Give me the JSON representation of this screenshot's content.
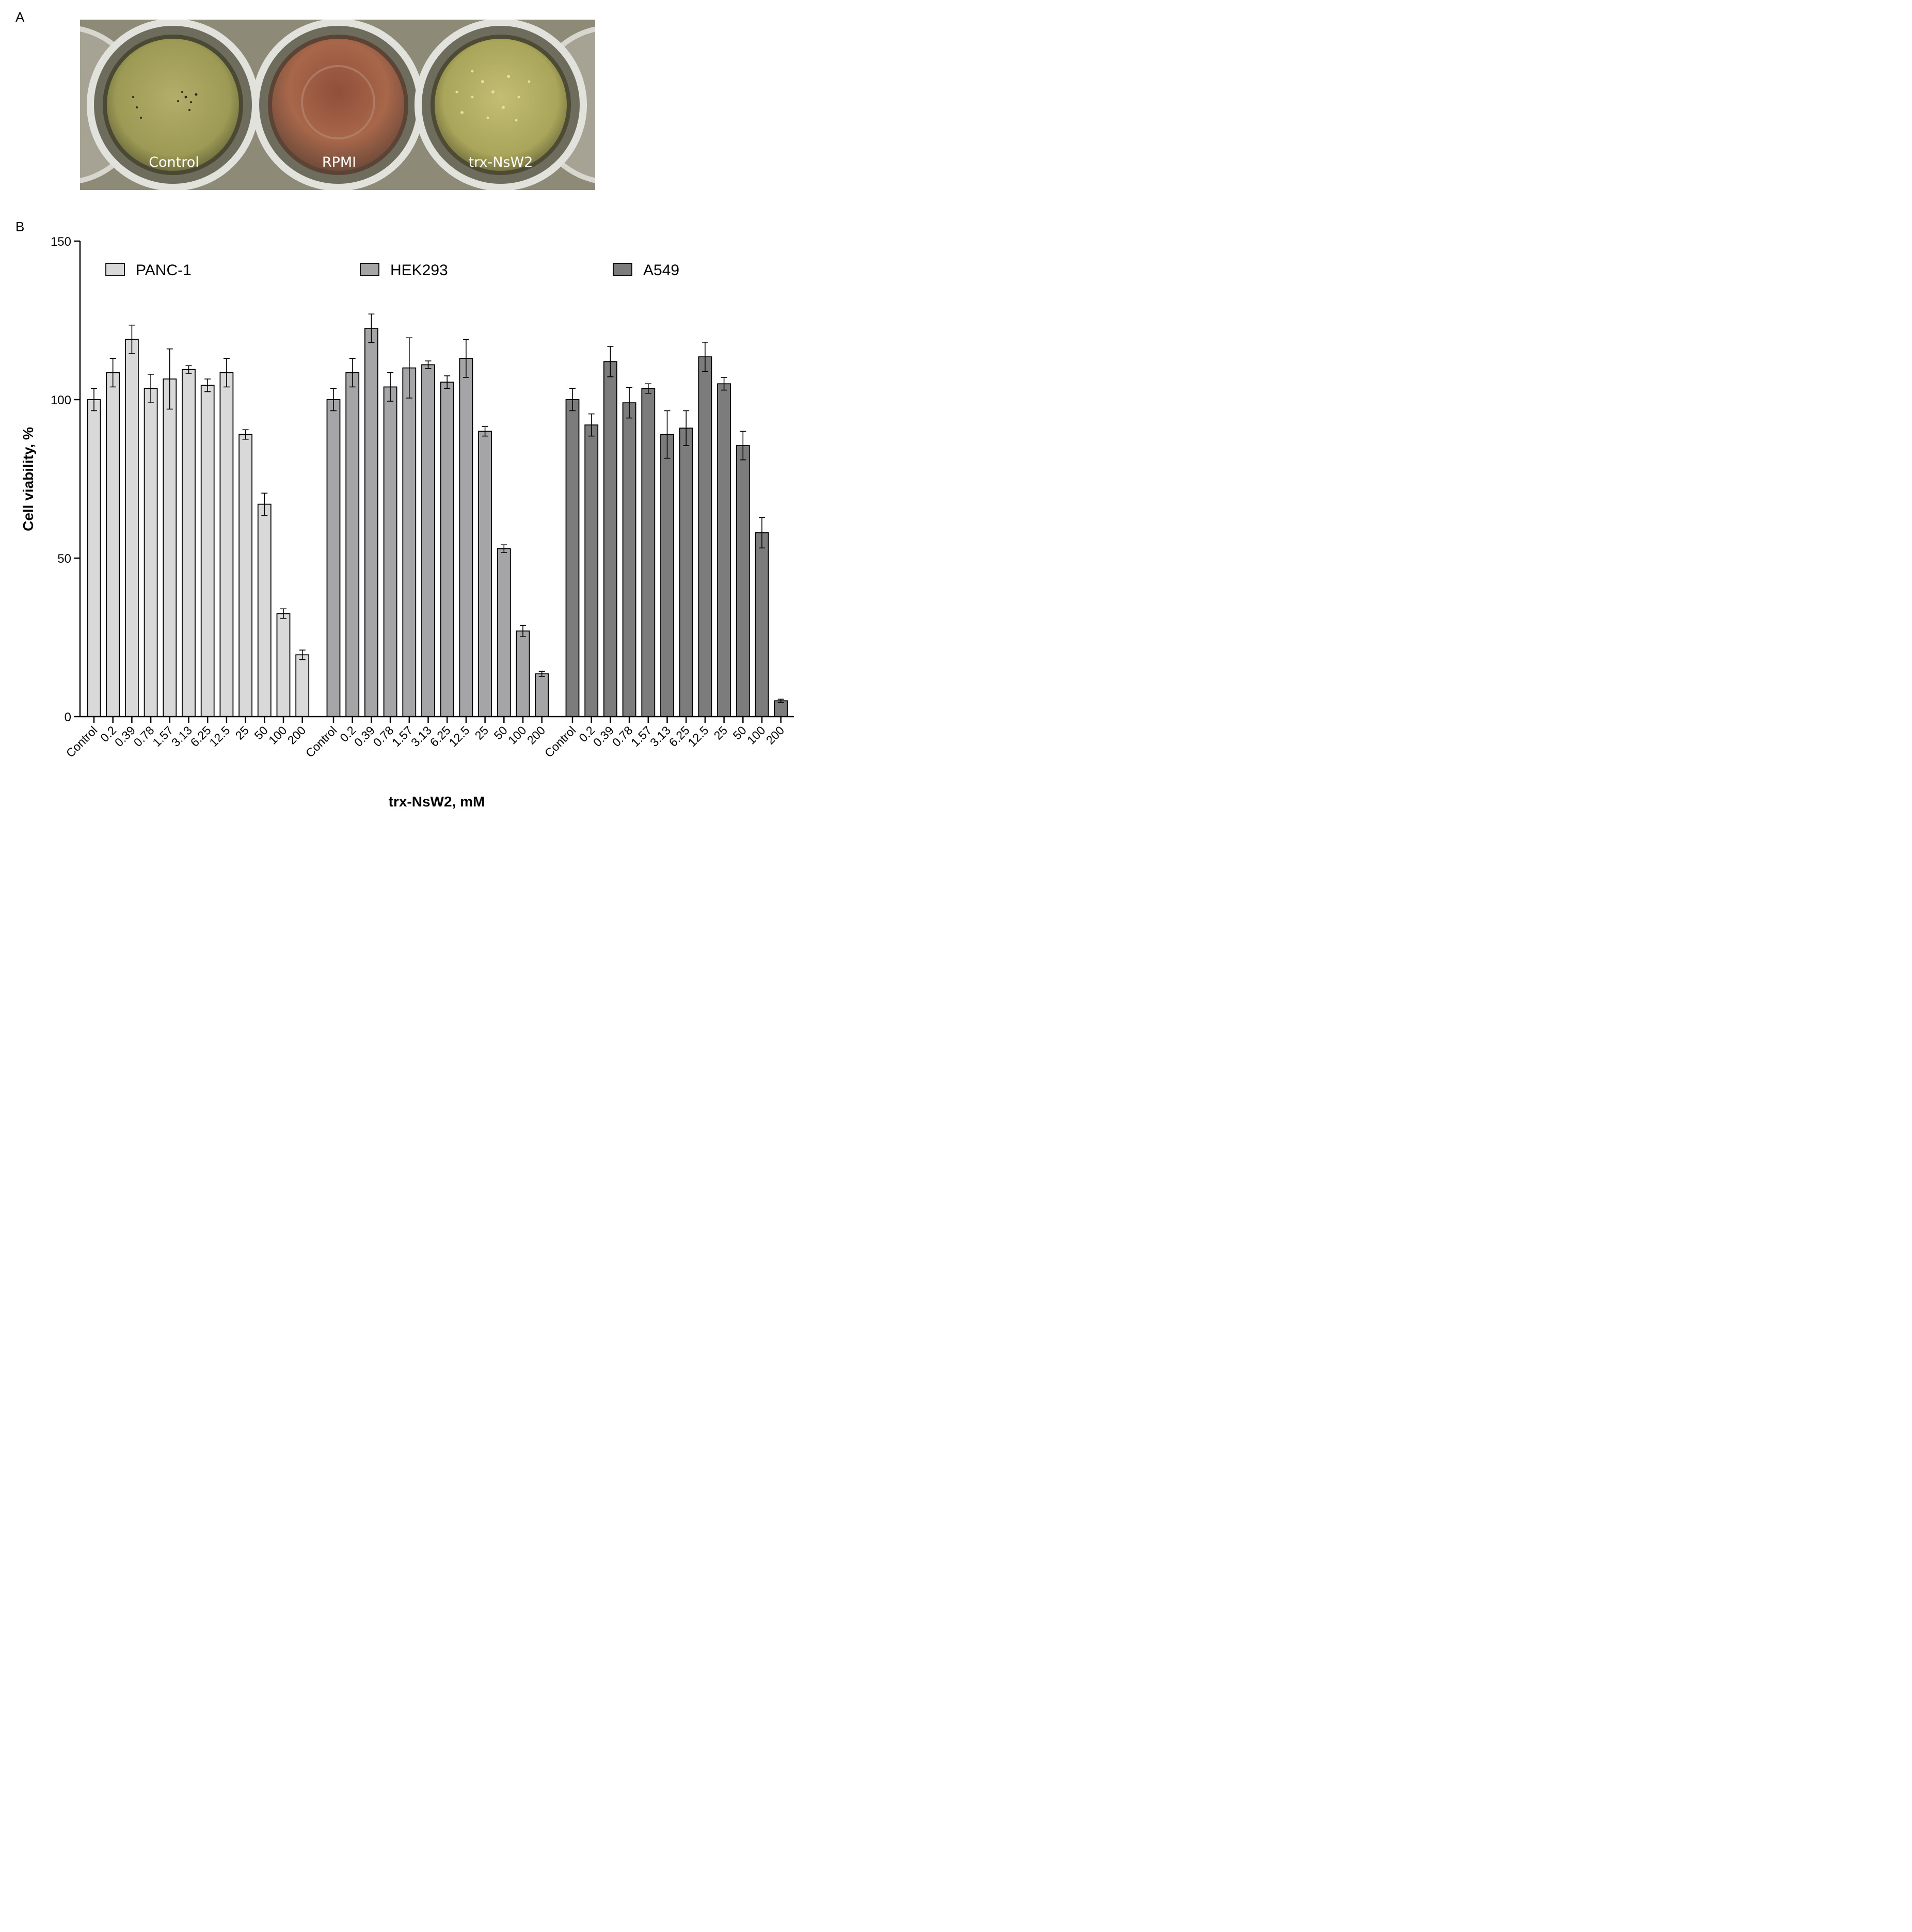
{
  "panels": {
    "a": "A",
    "b": "B"
  },
  "photo": {
    "wells": [
      {
        "label": "Control",
        "color": "#9c9a55"
      },
      {
        "label": "RPMI",
        "color": "#a8674a"
      },
      {
        "label": "trx-NsW2",
        "color": "#a9a55a"
      }
    ]
  },
  "chart_data": {
    "type": "bar",
    "xlabel": "trx-NsW2, mM",
    "ylabel": "Cell viability, %",
    "ylim": [
      0,
      150
    ],
    "yticks": [
      0,
      50,
      100,
      150
    ],
    "legend_position": "top",
    "categories": [
      "Control",
      "0.2",
      "0.39",
      "0.78",
      "1.57",
      "3.13",
      "6.25",
      "12.5",
      "25",
      "50",
      "100",
      "200"
    ],
    "series": [
      {
        "name": "PANC-1",
        "color": "#d9d9d9",
        "values": [
          100,
          108.5,
          119,
          103.5,
          106.5,
          109.5,
          104.5,
          108.5,
          89,
          67,
          32.5,
          19.5
        ],
        "errors": [
          3.5,
          4.5,
          4.5,
          4.5,
          9.5,
          1.2,
          2.0,
          4.5,
          1.5,
          3.5,
          1.5,
          1.5
        ]
      },
      {
        "name": "HEK293",
        "color": "#a5a5a8",
        "values": [
          100,
          108.5,
          122.5,
          104,
          110,
          111,
          105.5,
          113,
          90,
          53,
          27,
          13.5
        ],
        "errors": [
          3.5,
          4.5,
          4.5,
          4.5,
          9.5,
          1.2,
          2.0,
          6.0,
          1.5,
          1.2,
          1.8,
          0.8
        ]
      },
      {
        "name": "A549",
        "color": "#7c7c7c",
        "values": [
          100,
          92,
          112,
          99,
          103.5,
          89,
          91,
          113.5,
          105,
          85.5,
          58,
          5
        ],
        "errors": [
          3.5,
          3.5,
          4.8,
          4.8,
          1.5,
          7.5,
          5.5,
          4.6,
          2.0,
          4.5,
          4.8,
          0.5
        ]
      }
    ]
  }
}
